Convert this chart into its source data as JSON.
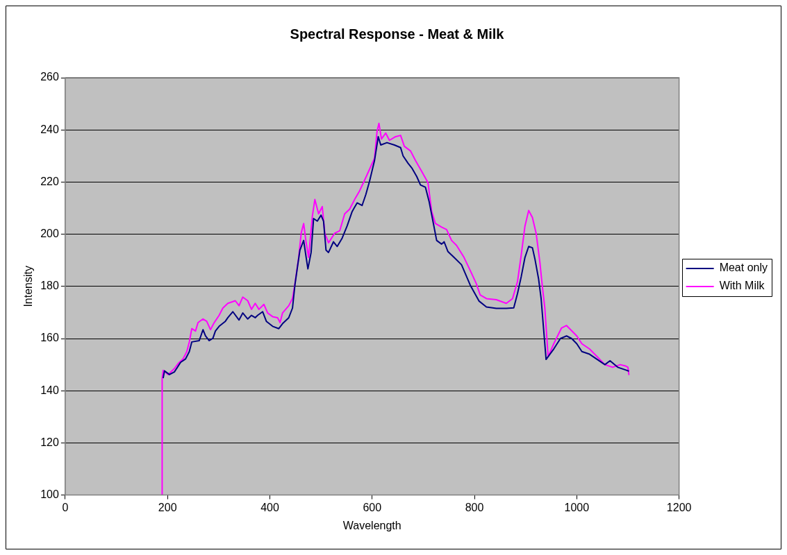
{
  "chart_data": {
    "type": "line",
    "title": "Spectral Response - Meat & Milk",
    "xlabel": "Wavelength",
    "ylabel": "Intensity",
    "xlim": [
      0,
      1200
    ],
    "xticks": [
      0,
      200,
      400,
      600,
      800,
      1000,
      1200
    ],
    "ylim": [
      100,
      260
    ],
    "yticks": [
      100,
      120,
      140,
      160,
      180,
      200,
      220,
      240,
      260
    ],
    "grid": "y",
    "legend": "right",
    "marker": "none",
    "line_style": "solid",
    "series": [
      {
        "name": "Meat only",
        "color": "#000080",
        "x": [
          191.5,
          194,
          203.7,
          213.4,
          225.6,
          235.3,
          242.6,
          247.4,
          262,
          269.3,
          274.2,
          281.5,
          288.7,
          293.6,
          300.9,
          313,
          317.9,
          327.6,
          339.8,
          347.1,
          356.8,
          364.1,
          371.4,
          376.2,
          386,
          393.2,
          405.4,
          417.5,
          424.8,
          437,
          444.3,
          449,
          454,
          458.8,
          466.1,
          471,
          474.4,
          480.7,
          485.5,
          492.8,
          500.1,
          505,
          509.8,
          514.7,
          524.4,
          531.7,
          541.4,
          551.1,
          560.9,
          570.6,
          580.3,
          587.6,
          594.9,
          604.6,
          611.9,
          616.8,
          628.9,
          643.5,
          655.6,
          660.5,
          670.2,
          677.5,
          687.2,
          694.5,
          704.2,
          711.5,
          718.8,
          726.1,
          735.8,
          740.7,
          748,
          760.1,
          774.7,
          791.7,
          808.8,
          823.4,
          842.8,
          862.2,
          876.8,
          884.1,
          891.4,
          898.7,
          906,
          913.3,
          918.1,
          925.4,
          930.3,
          940,
          955,
          968,
          980,
          990,
          1000,
          1010,
          1025,
          1040,
          1055,
          1065,
          1080,
          1095,
          1102
        ],
        "values": [
          144.8,
          147.6,
          146.2,
          147.2,
          150.9,
          152.2,
          155,
          158.7,
          159.2,
          163.4,
          161,
          159.2,
          160.1,
          162.9,
          164.7,
          166.6,
          168,
          170.3,
          167.1,
          169.8,
          167.5,
          168.9,
          168,
          168.9,
          170.3,
          166.6,
          164.7,
          163.8,
          165.7,
          168,
          171.7,
          180.5,
          187.4,
          193.9,
          197.6,
          191.1,
          186.7,
          193,
          206,
          205,
          207.3,
          205,
          193.9,
          193,
          197.1,
          195.3,
          198.5,
          203.2,
          208.7,
          212,
          211,
          215.2,
          220.3,
          228.2,
          237.4,
          234.2,
          235.1,
          234.2,
          233.2,
          230,
          227.2,
          225.4,
          222.1,
          218.9,
          218,
          212.4,
          205,
          197.6,
          196.2,
          197.1,
          193.4,
          191.1,
          188.3,
          180.5,
          174.4,
          172.1,
          171.6,
          171.6,
          171.8,
          177.2,
          183.7,
          191.1,
          195.3,
          194.8,
          190.6,
          182.8,
          175.3,
          152,
          156,
          160,
          161,
          160,
          158,
          155,
          154,
          152,
          150,
          151.5,
          149,
          148,
          147.5
        ]
      },
      {
        "name": "With Milk",
        "color": "#ff00ff",
        "x": [
          189.5,
          189.5,
          191.5,
          201.3,
          213.4,
          220.7,
          230.4,
          237.7,
          242.6,
          247.4,
          254.7,
          259.6,
          269.3,
          276.6,
          283.9,
          291.2,
          300.9,
          308.2,
          317.9,
          332.5,
          339.8,
          347.1,
          356.8,
          364.1,
          371.4,
          378.7,
          388.4,
          395.7,
          405.4,
          415.1,
          420,
          424.8,
          437,
          444.3,
          449,
          456.4,
          461.3,
          466.1,
          471,
          475.8,
          483.1,
          488,
          495.3,
          502.5,
          507.4,
          514.7,
          526.8,
          536.6,
          546.3,
          556,
          565.7,
          575.4,
          585.2,
          594.9,
          604.6,
          609.5,
          613.3,
          618.2,
          626.5,
          633.8,
          645.9,
          655.6,
          662.9,
          675.1,
          684.8,
          697,
          709.1,
          716.4,
          723.7,
          735.8,
          745.5,
          755.3,
          765,
          779.6,
          794.1,
          803.9,
          811.2,
          823.4,
          842.8,
          862.2,
          874.4,
          884.1,
          891.4,
          898.7,
          906,
          913.3,
          920.6,
          927.9,
          932.7,
          937.6,
          944,
          955,
          970,
          980,
          990,
          1000,
          1010,
          1025,
          1040,
          1055,
          1070,
          1085,
          1095,
          1100,
          1102
        ],
        "values": [
          100,
          144.8,
          147.8,
          146.2,
          148.5,
          150.4,
          152.2,
          155,
          158.7,
          163.8,
          162.9,
          166.1,
          167.5,
          166.6,
          163.4,
          166.1,
          168.9,
          171.7,
          173.5,
          174.5,
          172.6,
          175.9,
          174.5,
          171.2,
          173.5,
          171.2,
          173.1,
          169.8,
          168.4,
          168,
          166.1,
          169.8,
          172.6,
          175.4,
          180.9,
          191.1,
          200.4,
          204.1,
          196.7,
          191.1,
          206.9,
          213.3,
          207.8,
          210.6,
          200.4,
          196.7,
          200.4,
          201.3,
          207.8,
          209.6,
          213.3,
          216.6,
          220.7,
          224.9,
          229.1,
          239.3,
          242.5,
          236.5,
          238.8,
          236,
          237.4,
          237.9,
          233.7,
          231.9,
          228.2,
          224,
          219.8,
          208.7,
          204.1,
          202.7,
          201.8,
          197.6,
          195.7,
          191.1,
          185.1,
          180.9,
          176.7,
          175.3,
          174.9,
          173.5,
          175.3,
          181.8,
          192,
          203.1,
          209.1,
          206.4,
          200.3,
          189.2,
          180,
          171.6,
          153,
          158,
          164,
          165,
          163,
          161,
          158,
          156,
          153,
          150,
          149,
          150,
          149.5,
          149,
          146
        ]
      }
    ]
  }
}
